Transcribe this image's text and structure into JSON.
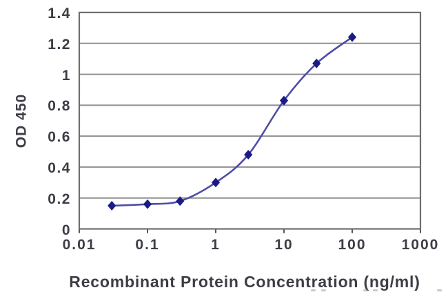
{
  "figure": {
    "x_axis_title": "Recombinant Protein Concentration (ng/ml)",
    "y_axis_title": "OD 450"
  },
  "colors": {
    "background": "#ffffff",
    "grid": "#8f8f8f",
    "frame": "#6e6e6e",
    "tick": "#555555",
    "text": "#3d3d46",
    "line": "#4d4da8",
    "marker": "#1b1b86"
  },
  "chart_data": {
    "type": "line",
    "title": "",
    "xlabel": "Recombinant Protein Concentration (ng/ml)",
    "ylabel": "OD 450",
    "x_scale": "log",
    "xlim": [
      0.01,
      1000
    ],
    "ylim": [
      0,
      1.4
    ],
    "x_tick_values": [
      0.01,
      0.1,
      1,
      10,
      100,
      1000
    ],
    "x_tick_labels": [
      "0.01",
      "0.1",
      "1",
      "10",
      "100",
      "1000"
    ],
    "y_tick_values": [
      0,
      0.2,
      0.4,
      0.6,
      0.8,
      1,
      1.2,
      1.4
    ],
    "y_tick_labels": [
      "0",
      "0.2",
      "0.4",
      "0.6",
      "0.8",
      "1",
      "1.2",
      "1.4"
    ],
    "grid": "horizontal",
    "legend": "none",
    "series": [
      {
        "name": "OD 450",
        "x": [
          0.03,
          0.1,
          0.3,
          1,
          3,
          10,
          30,
          100
        ],
        "y": [
          0.15,
          0.16,
          0.18,
          0.3,
          0.48,
          0.83,
          1.07,
          1.24
        ],
        "marker": "diamond",
        "smooth": true
      }
    ]
  }
}
